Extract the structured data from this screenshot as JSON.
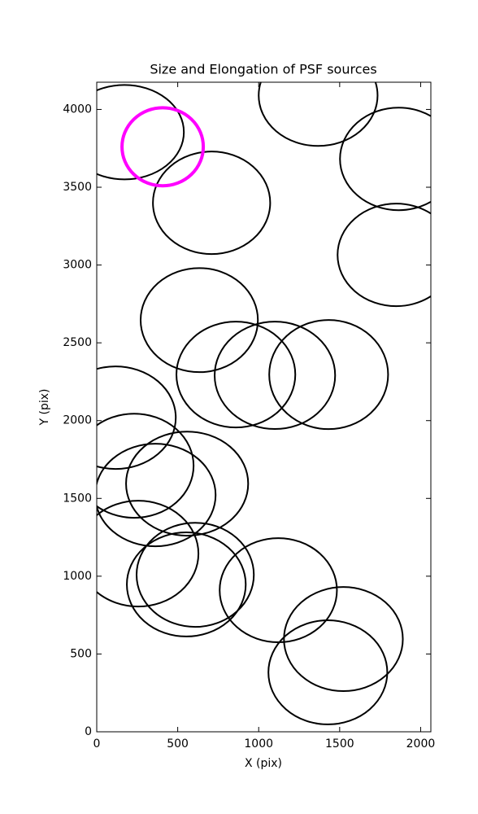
{
  "chart_data": {
    "type": "ellipse",
    "title": "Size and Elongation of PSF sources",
    "x_label": "X (pix)",
    "y_label": "Y (pix)",
    "xlim": [
      0,
      2063
    ],
    "ylim": [
      0,
      4175
    ],
    "xticks": [
      0,
      500,
      1000,
      1500,
      2000
    ],
    "yticks": [
      0,
      500,
      1000,
      1500,
      2000,
      2500,
      3000,
      3500,
      4000
    ],
    "series": [
      {
        "color": "#000000",
        "x": [
          171,
          709,
          1367,
          1864,
          1849,
          633,
          859,
          1100,
          1432,
          116,
          231,
          362,
          558,
          256,
          608,
          553,
          1121,
          1523,
          1427
        ],
        "y": [
          3854,
          3400,
          4090,
          3682,
          3065,
          2646,
          2296,
          2291,
          2296,
          2019,
          1710,
          1522,
          1595,
          1145,
          1009,
          947,
          910,
          596,
          382
        ],
        "width": [
          734,
          724,
          734,
          724,
          724,
          724,
          734,
          744,
          734,
          744,
          734,
          744,
          754,
          744,
          724,
          734,
          724,
          734,
          734
        ],
        "height": [
          607,
          659,
          649,
          659,
          659,
          669,
          680,
          690,
          701,
          659,
          669,
          659,
          669,
          680,
          669,
          669,
          669,
          669,
          669
        ]
      },
      {
        "color": "#ff00ff",
        "x": [
          407
        ],
        "y": [
          3760
        ],
        "width": [
          502
        ],
        "height": [
          502
        ]
      }
    ]
  }
}
